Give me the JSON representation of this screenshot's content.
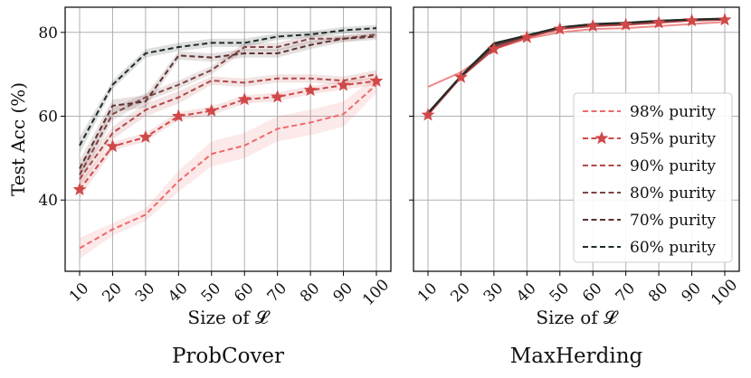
{
  "chart_data": [
    {
      "type": "line",
      "subtitle": "ProbCover",
      "xlabel": "Size of 𝓛",
      "ylabel": "Test Acc (%)",
      "categories": [
        "10",
        "20",
        "30",
        "40",
        "50",
        "60",
        "70",
        "80",
        "90",
        "100"
      ],
      "ylim": [
        23,
        86
      ],
      "yticks": [
        40,
        60,
        80
      ],
      "grid": true,
      "series": [
        {
          "name": "98% purity",
          "color": "#ee6a6a",
          "dashed": true,
          "marker": "none",
          "values": [
            28.5,
            33,
            36.5,
            44.5,
            51,
            53,
            57,
            58.5,
            60.5,
            67.5
          ],
          "band": [
            2.5,
            1.5,
            1.5,
            2.5,
            3,
            3,
            3,
            3,
            3,
            2
          ]
        },
        {
          "name": "95% purity",
          "color": "#d04848",
          "dashed": true,
          "marker": "star",
          "values": [
            42.5,
            52.8,
            55,
            60,
            61.3,
            64,
            64.6,
            66.2,
            67.4,
            68.4
          ],
          "band": [
            2,
            1,
            1,
            1,
            1,
            1,
            1,
            1,
            1,
            1
          ]
        },
        {
          "name": "90% purity",
          "color": "#b24848",
          "dashed": true,
          "marker": "none",
          "values": [
            45,
            56,
            61.5,
            64.5,
            68.5,
            68,
            69,
            69,
            68.5,
            70
          ],
          "band": [
            2,
            1.5,
            1.5,
            1.5,
            1,
            1,
            1,
            1,
            1,
            1
          ]
        },
        {
          "name": "80% purity",
          "color": "#7f4545",
          "dashed": true,
          "marker": "none",
          "values": [
            46,
            60.5,
            64.5,
            67.5,
            71,
            76.5,
            76.5,
            78.5,
            78.5,
            79.5
          ],
          "band": [
            2,
            1.5,
            1,
            1,
            1,
            1,
            1,
            1,
            0.8,
            0.8
          ]
        },
        {
          "name": "70% purity",
          "color": "#5b3232",
          "dashed": true,
          "marker": "none",
          "values": [
            47.5,
            62.5,
            63.5,
            74.5,
            74,
            75,
            75,
            77,
            78.5,
            79
          ],
          "band": [
            2,
            1.5,
            1.5,
            1,
            1,
            1,
            1,
            1,
            0.8,
            0.8
          ]
        },
        {
          "name": "60% purity",
          "color": "#1f2b25",
          "dashed": true,
          "marker": "none",
          "values": [
            53,
            67.5,
            75,
            76.5,
            77.5,
            77.5,
            79,
            79.5,
            80.5,
            81
          ],
          "band": [
            2,
            1,
            1,
            1,
            1,
            1,
            0.8,
            0.8,
            0.8,
            0.8
          ]
        }
      ]
    },
    {
      "type": "line",
      "subtitle": "MaxHerding",
      "xlabel": "Size of 𝓛",
      "ylabel": "",
      "categories": [
        "10",
        "20",
        "30",
        "40",
        "50",
        "60",
        "70",
        "80",
        "90",
        "100"
      ],
      "ylim": [
        23,
        86
      ],
      "yticks": [
        40,
        60,
        80
      ],
      "grid": true,
      "legend_position": "lower-right",
      "series": [
        {
          "name": "98% purity",
          "color": "#ee8a8a",
          "dashed": false,
          "marker": "none",
          "values": [
            67,
            70.5,
            76,
            78.5,
            80,
            80.8,
            81,
            81.5,
            82,
            82.5
          ],
          "band": []
        },
        {
          "name": "95% purity",
          "color": "#d04848",
          "dashed": false,
          "marker": "star",
          "values": [
            60.3,
            69.3,
            76,
            78.8,
            80.8,
            81.5,
            81.8,
            82.3,
            82.8,
            83
          ],
          "band": []
        },
        {
          "name": "90% purity",
          "color": "#b24848",
          "dashed": false,
          "marker": "none",
          "values": [
            60.5,
            69.3,
            76.3,
            79,
            81,
            81.7,
            82,
            82.5,
            83,
            83.1
          ],
          "band": []
        },
        {
          "name": "80% purity",
          "color": "#7f4545",
          "dashed": false,
          "marker": "none",
          "values": [
            60.6,
            69.4,
            76.6,
            79.1,
            81.1,
            81.8,
            82.1,
            82.6,
            83,
            83.2
          ],
          "band": []
        },
        {
          "name": "70% purity",
          "color": "#5b3232",
          "dashed": false,
          "marker": "none",
          "values": [
            60.7,
            69.5,
            77,
            79.2,
            81.2,
            81.9,
            82.2,
            82.7,
            83.1,
            83.2
          ],
          "band": []
        },
        {
          "name": "60% purity",
          "color": "#1f2b25",
          "dashed": false,
          "marker": "none",
          "values": [
            60.8,
            69.6,
            77.4,
            79.3,
            81.2,
            82,
            82.3,
            82.8,
            83.1,
            83.3
          ],
          "band": []
        }
      ]
    }
  ]
}
